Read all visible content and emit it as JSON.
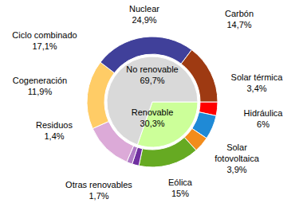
{
  "chart_data": {
    "type": "donut",
    "data_labels": true,
    "rings": [
      {
        "categories": [
          "Renovable",
          "No renovable"
        ],
        "values": [
          30.3,
          69.7
        ],
        "value_labels": [
          "30,3%",
          "69,7%"
        ],
        "colors": [
          "#ccff99",
          "#d9d9d9"
        ]
      },
      {
        "categories": [
          "Solar térmica",
          "Hidráulica",
          "Solar fotovoltaica",
          "Eólica",
          "Otras renovables",
          "Residuos",
          "Cogeneración",
          "Ciclo combinado",
          "Nuclear",
          "Carbón"
        ],
        "values": [
          3.4,
          6,
          3.9,
          15,
          1.7,
          1.4,
          11.9,
          17.1,
          24.9,
          14.7
        ],
        "value_labels": [
          "3,4%",
          "6%",
          "3,9%",
          "15%",
          "1,7%",
          "1,4%",
          "11,9%",
          "17,1%",
          "24,9%",
          "14,7%"
        ],
        "colors": [
          "#ff0000",
          "#1f8ad6",
          "#f28c1c",
          "#66aa22",
          "#7030a0",
          "#b07cc6",
          "#dcaad8",
          "#ffcc66",
          "#40409a",
          "#9e3a12"
        ]
      }
    ]
  }
}
